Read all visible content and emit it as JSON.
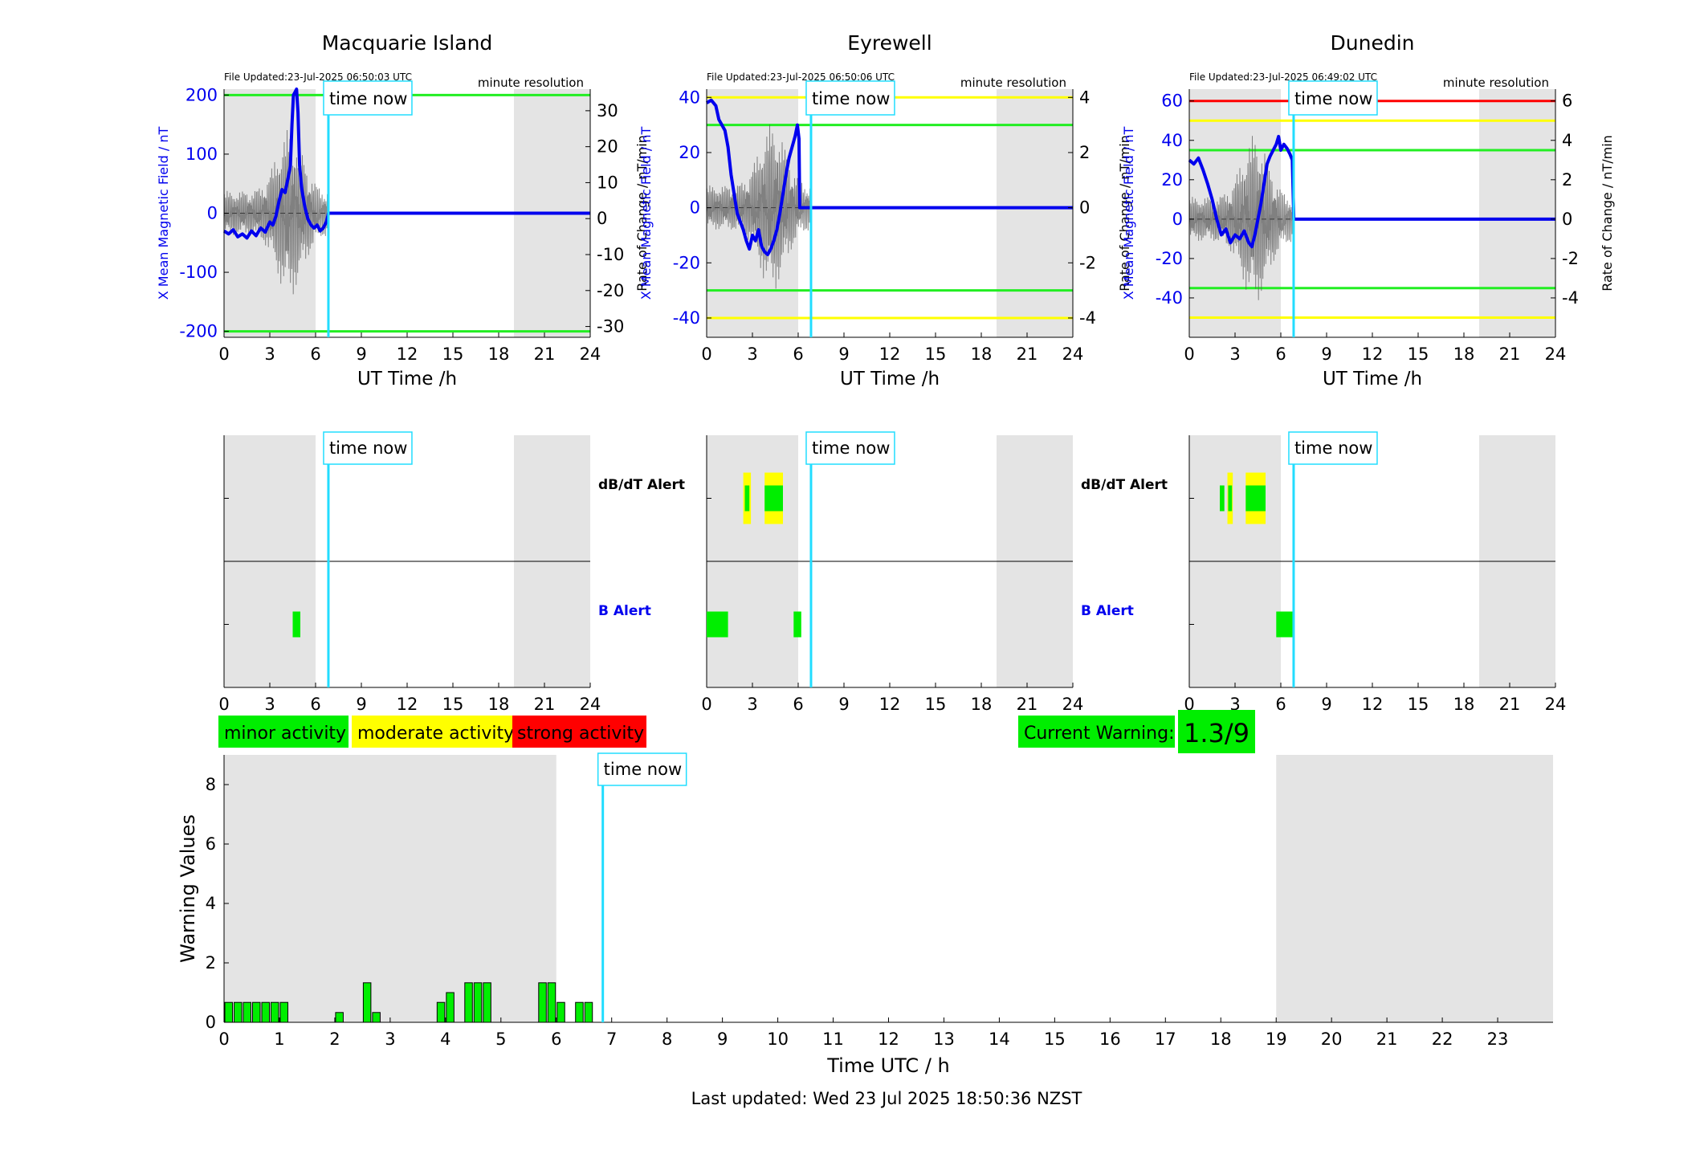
{
  "colors": {
    "x_field": "#0000ee",
    "rate": "#555555",
    "now_line": "#22ddff",
    "night": "#e4e4e4",
    "minor": "#00ee00",
    "moderate": "#ffff00",
    "strong": "#ff0000",
    "b_alert": "#0000ee"
  },
  "time_now_label": "time now",
  "now_hour": 6.84,
  "stations": [
    {
      "name": "Macquarie Island",
      "file_updated": "File Updated:23-Jul-2025 06:50:03 UTC",
      "resolution": "minute resolution",
      "ylabel_left": "X Mean Magnetic Field / nT",
      "ylabel_right": "Rate of Change / nT/min",
      "xlabel": "UT Time /h",
      "ylim_left": [
        -210,
        210
      ],
      "yticks_left": [
        -200,
        -100,
        0,
        100,
        200
      ],
      "ylim_right": [
        -33,
        36
      ],
      "yticks_right": [
        -30,
        -20,
        -10,
        0,
        10,
        20,
        30
      ],
      "thresholds": [
        {
          "value": 200,
          "color": "green"
        },
        {
          "value": -200,
          "color": "green"
        }
      ],
      "night_bands": [
        [
          0,
          6
        ],
        [
          19,
          24
        ]
      ],
      "series_x": [
        [
          0,
          -30
        ],
        [
          0.3,
          -35
        ],
        [
          0.6,
          -28
        ],
        [
          0.9,
          -40
        ],
        [
          1.2,
          -35
        ],
        [
          1.5,
          -42
        ],
        [
          1.8,
          -30
        ],
        [
          2.1,
          -38
        ],
        [
          2.4,
          -25
        ],
        [
          2.7,
          -32
        ],
        [
          3,
          -15
        ],
        [
          3.2,
          -20
        ],
        [
          3.4,
          -5
        ],
        [
          3.6,
          20
        ],
        [
          3.8,
          40
        ],
        [
          4.0,
          35
        ],
        [
          4.2,
          60
        ],
        [
          4.35,
          80
        ],
        [
          4.45,
          150
        ],
        [
          4.55,
          200
        ],
        [
          4.65,
          205
        ],
        [
          4.75,
          210
        ],
        [
          4.85,
          170
        ],
        [
          4.95,
          80
        ],
        [
          5.1,
          40
        ],
        [
          5.3,
          10
        ],
        [
          5.5,
          -10
        ],
        [
          5.7,
          -20
        ],
        [
          5.9,
          -25
        ],
        [
          6.1,
          -20
        ],
        [
          6.3,
          -30
        ],
        [
          6.5,
          -25
        ],
        [
          6.7,
          -15
        ],
        [
          6.85,
          0
        ],
        [
          24,
          0
        ]
      ],
      "dbdt_alerts": [],
      "b_alerts": [
        {
          "start": 4.5,
          "end": 5.0,
          "color": "minor"
        }
      ]
    },
    {
      "name": "Eyrewell",
      "file_updated": "File Updated:23-Jul-2025 06:50:06 UTC",
      "resolution": "minute resolution",
      "ylabel_left": "X Mean Magnetic Field / nT",
      "ylabel_right": "Rate of Change / nT/min",
      "xlabel": "UT Time /h",
      "ylim_left": [
        -47,
        43
      ],
      "yticks_left": [
        -40,
        -20,
        0,
        20,
        40
      ],
      "ylim_right": [
        -4.7,
        4.3
      ],
      "yticks_right": [
        -4,
        -2,
        0,
        2,
        4
      ],
      "thresholds": [
        {
          "value": 40,
          "color": "yellow"
        },
        {
          "value": 30,
          "color": "green"
        },
        {
          "value": -30,
          "color": "green"
        },
        {
          "value": -40,
          "color": "yellow"
        }
      ],
      "night_bands": [
        [
          0,
          6
        ],
        [
          19,
          24
        ]
      ],
      "series_x": [
        [
          0,
          38
        ],
        [
          0.3,
          39
        ],
        [
          0.6,
          37
        ],
        [
          0.8,
          32
        ],
        [
          1.0,
          30
        ],
        [
          1.2,
          28
        ],
        [
          1.4,
          22
        ],
        [
          1.6,
          12
        ],
        [
          1.8,
          5
        ],
        [
          2.0,
          -2
        ],
        [
          2.2,
          -5
        ],
        [
          2.4,
          -8
        ],
        [
          2.6,
          -12
        ],
        [
          2.8,
          -15
        ],
        [
          3.0,
          -10
        ],
        [
          3.2,
          -12
        ],
        [
          3.4,
          -8
        ],
        [
          3.6,
          -14
        ],
        [
          3.8,
          -16
        ],
        [
          4.0,
          -17
        ],
        [
          4.2,
          -15
        ],
        [
          4.4,
          -12
        ],
        [
          4.6,
          -8
        ],
        [
          4.8,
          -2
        ],
        [
          5.0,
          5
        ],
        [
          5.2,
          12
        ],
        [
          5.4,
          18
        ],
        [
          5.6,
          22
        ],
        [
          5.8,
          26
        ],
        [
          5.95,
          30
        ],
        [
          6.05,
          25
        ],
        [
          6.1,
          0
        ],
        [
          24,
          0
        ]
      ],
      "dbdt_alerts": [
        {
          "start": 2.4,
          "end": 2.9,
          "color": "moderate"
        },
        {
          "start": 2.5,
          "end": 2.8,
          "color": "minor"
        },
        {
          "start": 3.8,
          "end": 5.0,
          "color": "moderate"
        },
        {
          "start": 3.8,
          "end": 5.0,
          "color": "minor"
        }
      ],
      "b_alerts": [
        {
          "start": 0,
          "end": 1.4,
          "color": "minor"
        },
        {
          "start": 5.7,
          "end": 6.2,
          "color": "minor"
        }
      ]
    },
    {
      "name": "Dunedin",
      "file_updated": "File Updated:23-Jul-2025 06:49:02 UTC",
      "resolution": "minute resolution",
      "ylabel_left": "X Mean Magnetic Field / nT",
      "ylabel_right": "Rate of Change / nT/min",
      "xlabel": "UT Time /h",
      "ylim_left": [
        -60,
        66
      ],
      "yticks_left": [
        -40,
        -20,
        0,
        20,
        40,
        60
      ],
      "ylim_right": [
        -6,
        6.6
      ],
      "yticks_right": [
        -4,
        -2,
        0,
        2,
        4,
        6
      ],
      "thresholds": [
        {
          "value": 60,
          "color": "red"
        },
        {
          "value": 50,
          "color": "yellow"
        },
        {
          "value": 35,
          "color": "green"
        },
        {
          "value": -35,
          "color": "green"
        },
        {
          "value": -50,
          "color": "yellow"
        }
      ],
      "night_bands": [
        [
          0,
          6
        ],
        [
          19,
          24
        ]
      ],
      "series_x": [
        [
          0,
          30
        ],
        [
          0.3,
          28
        ],
        [
          0.6,
          31
        ],
        [
          0.9,
          25
        ],
        [
          1.2,
          18
        ],
        [
          1.5,
          10
        ],
        [
          1.8,
          0
        ],
        [
          2.1,
          -8
        ],
        [
          2.4,
          -5
        ],
        [
          2.7,
          -12
        ],
        [
          3.0,
          -8
        ],
        [
          3.3,
          -10
        ],
        [
          3.6,
          -6
        ],
        [
          3.9,
          -12
        ],
        [
          4.1,
          -14
        ],
        [
          4.3,
          -8
        ],
        [
          4.5,
          0
        ],
        [
          4.7,
          8
        ],
        [
          4.9,
          18
        ],
        [
          5.1,
          28
        ],
        [
          5.3,
          32
        ],
        [
          5.5,
          35
        ],
        [
          5.7,
          38
        ],
        [
          5.85,
          42
        ],
        [
          6.0,
          35
        ],
        [
          6.2,
          38
        ],
        [
          6.4,
          36
        ],
        [
          6.6,
          33
        ],
        [
          6.75,
          30
        ],
        [
          6.85,
          0
        ],
        [
          24,
          0
        ]
      ],
      "dbdt_alerts": [
        {
          "start": 2.0,
          "end": 2.3,
          "color": "minor"
        },
        {
          "start": 2.5,
          "end": 2.85,
          "color": "moderate"
        },
        {
          "start": 2.55,
          "end": 2.8,
          "color": "minor"
        },
        {
          "start": 3.7,
          "end": 5.0,
          "color": "moderate"
        },
        {
          "start": 3.7,
          "end": 5.0,
          "color": "minor"
        }
      ],
      "b_alerts": [
        {
          "start": 5.7,
          "end": 6.8,
          "color": "minor"
        }
      ]
    }
  ],
  "alert_labels": {
    "dbdt": "dB/dT Alert",
    "b": "B Alert"
  },
  "legend": {
    "minor": "minor activity",
    "moderate": "moderate activity",
    "strong": "strong activity"
  },
  "current_warning": {
    "label": "Current Warning:",
    "value": "1.3/9"
  },
  "chart_data": [
    {
      "type": "bar",
      "title": "",
      "xlabel": "Time UTC / h",
      "ylabel": "Warning Values",
      "xlim": [
        0,
        24
      ],
      "ylim": [
        0,
        9
      ],
      "xticks": [
        0,
        1,
        2,
        3,
        4,
        5,
        6,
        7,
        8,
        9,
        10,
        11,
        12,
        13,
        14,
        15,
        16,
        17,
        18,
        19,
        20,
        21,
        22,
        23
      ],
      "yticks": [
        0,
        2,
        4,
        6,
        8
      ],
      "night_bands": [
        [
          0,
          6
        ],
        [
          19,
          24
        ]
      ],
      "bar_width_h": 0.1667,
      "x": [
        0.0,
        0.167,
        0.333,
        0.5,
        0.667,
        0.833,
        1.0,
        2.0,
        2.5,
        2.667,
        3.833,
        4.0,
        4.333,
        4.5,
        4.667,
        5.667,
        5.833,
        6.0,
        6.333,
        6.5
      ],
      "values": [
        0.67,
        0.67,
        0.67,
        0.67,
        0.67,
        0.67,
        0.67,
        0.33,
        1.33,
        0.33,
        0.67,
        1.0,
        1.33,
        1.33,
        1.33,
        1.33,
        1.33,
        0.67,
        0.67,
        0.67
      ]
    }
  ],
  "footer": "Last updated: Wed 23 Jul 2025 18:50:36 NZST"
}
